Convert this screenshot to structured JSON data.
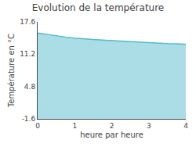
{
  "chart_data": {
    "type": "area",
    "title": "Evolution de la température",
    "xlabel": "heure par heure",
    "ylabel": "Température en °C",
    "x": [
      0,
      0.25,
      0.5,
      0.75,
      1.0,
      1.25,
      1.5,
      1.75,
      2.0,
      2.25,
      2.5,
      2.75,
      3.0,
      3.25,
      3.5,
      3.75,
      4.0
    ],
    "values": [
      15.4,
      15.1,
      14.8,
      14.6,
      14.4,
      14.2,
      14.1,
      14.0,
      13.9,
      13.8,
      13.6,
      13.5,
      13.4,
      13.35,
      13.3,
      13.25,
      13.2
    ],
    "color": "#55bbcc",
    "xlim": [
      0,
      4
    ],
    "ylim": [
      -1.6,
      17.6
    ],
    "xticks": [
      0,
      1,
      2,
      3,
      4
    ],
    "yticks": [
      -1.6,
      4.8,
      11.2,
      17.6
    ],
    "grid": false
  }
}
